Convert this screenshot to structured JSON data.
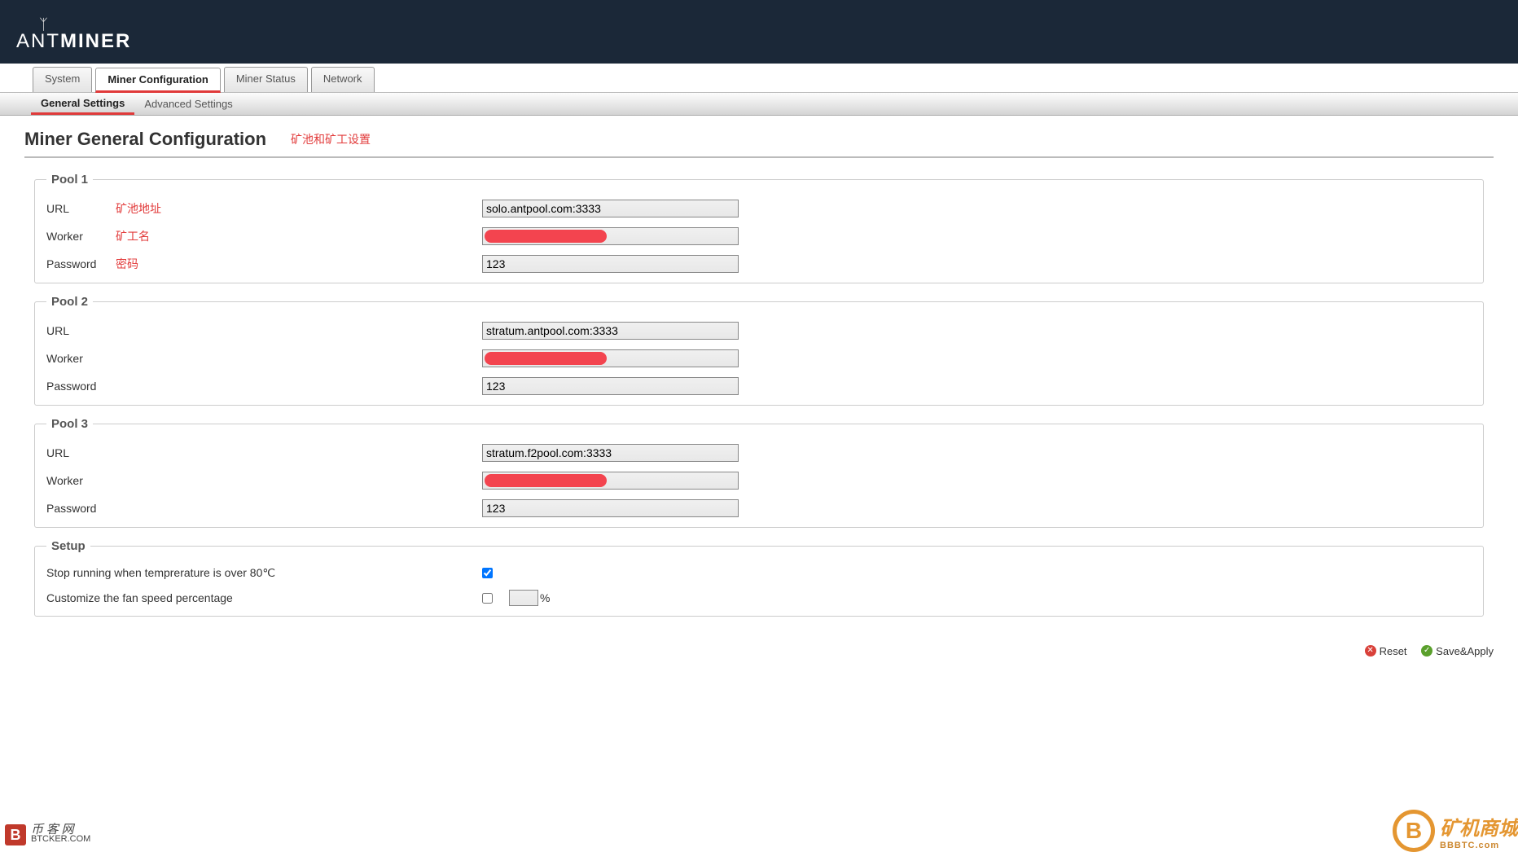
{
  "brand": {
    "name_part1": "ANT",
    "name_part2": "MINER"
  },
  "tabs": {
    "main": {
      "system": "System",
      "miner_config": "Miner Configuration",
      "miner_status": "Miner Status",
      "network": "Network"
    },
    "sub": {
      "general": "General Settings",
      "advanced": "Advanced Settings"
    }
  },
  "page": {
    "title": "Miner General Configuration",
    "title_annot": "矿池和矿工设置"
  },
  "annot": {
    "url": "矿池地址",
    "worker": "矿工名",
    "password": "密码"
  },
  "pools": [
    {
      "legend": "Pool 1",
      "url_label": "URL",
      "url_value": "solo.antpool.com:3333",
      "worker_label": "Worker",
      "worker_value_redacted": true,
      "password_label": "Password",
      "password_value": "123",
      "show_annotations": true
    },
    {
      "legend": "Pool 2",
      "url_label": "URL",
      "url_value": "stratum.antpool.com:3333",
      "worker_label": "Worker",
      "worker_value_redacted": true,
      "password_label": "Password",
      "password_value": "123",
      "show_annotations": false
    },
    {
      "legend": "Pool 3",
      "url_label": "URL",
      "url_value": "stratum.f2pool.com:3333",
      "worker_label": "Worker",
      "worker_value_redacted": true,
      "password_label": "Password",
      "password_value": "123",
      "show_annotations": false
    }
  ],
  "setup": {
    "legend": "Setup",
    "stop_temp_label": "Stop running when temprerature is over 80℃",
    "stop_temp_checked": true,
    "fan_label": "Customize the fan speed percentage",
    "fan_checked": false,
    "fan_value": "",
    "fan_unit": "%"
  },
  "footer": {
    "reset": "Reset",
    "save": "Save&Apply"
  },
  "watermarks": {
    "left_badge": "B",
    "left_cn": "币 客 网",
    "left_en": "BTCKER.COM",
    "right_badge": "B",
    "right_cn": "矿机商城",
    "right_en": "BBBTC.com"
  },
  "colors": {
    "header_bg": "#1b2838",
    "accent_red": "#e03a3a",
    "redaction": "#f3444f",
    "border": "#cccccc",
    "wm_orange": "#e28b1b"
  }
}
